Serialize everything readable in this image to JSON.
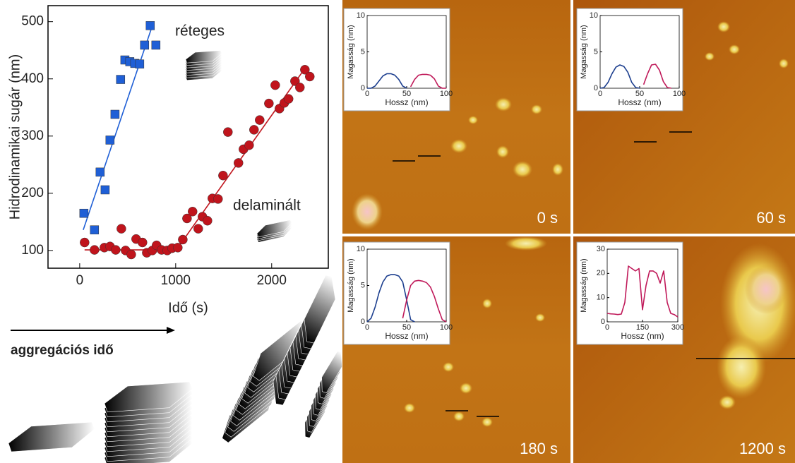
{
  "chart_data": [
    {
      "type": "scatter",
      "xlabel": "Idő (s)",
      "ylabel": "Hidrodinamikai sugár (nm)",
      "xlim": [
        -330,
        2590
      ],
      "ylim": [
        69,
        528
      ],
      "xticks": [
        0,
        1000,
        2000
      ],
      "yticks": [
        100,
        200,
        300,
        400,
        500
      ],
      "series": [
        {
          "name": "réteges",
          "color": "#1f5fd6",
          "marker": "square",
          "x": [
            44,
            154,
            213,
            265,
            316,
            368,
            426,
            471,
            522,
            574,
            625,
            676,
            735,
            794
          ],
          "values": [
            165,
            136,
            237,
            206,
            293,
            338,
            399,
            433,
            430,
            427,
            426,
            459,
            493,
            459
          ]
        },
        {
          "name": "delaminált",
          "color": "#c0141c",
          "marker": "circle",
          "x": [
            51,
            154,
            257,
            316,
            375,
            434,
            478,
            537,
            588,
            654,
            699,
            757,
            801,
            853,
            912,
            963,
            1022,
            1074,
            1118,
            1176,
            1235,
            1279,
            1331,
            1382,
            1441,
            1493,
            1544,
            1654,
            1706,
            1765,
            1816,
            1875,
            1971,
            2037,
            2081,
            2132,
            2176,
            2243,
            2294,
            2346,
            2397
          ],
          "values": [
            114,
            101,
            105,
            107,
            101,
            138,
            100,
            93,
            120,
            114,
            96,
            100,
            109,
            101,
            100,
            104,
            105,
            119,
            156,
            168,
            138,
            159,
            152,
            191,
            190,
            231,
            307,
            253,
            277,
            284,
            311,
            328,
            357,
            389,
            348,
            358,
            365,
            396,
            385,
            416,
            404
          ]
        }
      ],
      "fit_lines": [
        {
          "color": "#1f5fd6",
          "x": [
            37,
            757
          ],
          "values": [
            136,
            493
          ]
        },
        {
          "color": "#c0141c",
          "x": [
            51,
            1007,
            2353
          ],
          "values": [
            101,
            101,
            420
          ]
        }
      ]
    },
    {
      "type": "line",
      "xlabel": "Hossz (nm)",
      "ylabel": "Magasság (nm)",
      "xlim": [
        0,
        100
      ],
      "ylim": [
        0,
        10
      ],
      "xticks": [
        0,
        50,
        100
      ],
      "yticks": [
        0,
        5,
        10
      ],
      "x": [
        0,
        5,
        10,
        15,
        20,
        25,
        30,
        35,
        40,
        45,
        50,
        55,
        60,
        65,
        70,
        75,
        80,
        85,
        90,
        95,
        100
      ],
      "series": [
        {
          "color": "#1d3f8f",
          "values": [
            0,
            0,
            0.3,
            1.0,
            1.7,
            2.0,
            2.0,
            1.8,
            1.2,
            0.3,
            0,
            null,
            null,
            null,
            null,
            null,
            null,
            null,
            null,
            null,
            null
          ]
        },
        {
          "color": "#c01a5a",
          "values": [
            null,
            null,
            null,
            null,
            null,
            null,
            null,
            null,
            null,
            null,
            null,
            0.2,
            1.2,
            1.8,
            1.9,
            1.9,
            1.8,
            1.3,
            0.3,
            0,
            0
          ]
        }
      ]
    },
    {
      "type": "line",
      "xlabel": "Hossz (nm)",
      "ylabel": "Magasság (nm)",
      "xlim": [
        0,
        100
      ],
      "ylim": [
        0,
        10
      ],
      "xticks": [
        0,
        50,
        100
      ],
      "yticks": [
        0,
        5,
        10
      ],
      "x": [
        0,
        5,
        10,
        15,
        20,
        25,
        30,
        35,
        40,
        45,
        50,
        55,
        60,
        65,
        70,
        75,
        80,
        85,
        90,
        95,
        100
      ],
      "series": [
        {
          "color": "#1d3f8f",
          "values": [
            0,
            0.1,
            0.8,
            2.0,
            2.9,
            3.2,
            3.0,
            2.2,
            0.8,
            0.1,
            0,
            null,
            null,
            null,
            null,
            null,
            null,
            null,
            null,
            null,
            null
          ]
        },
        {
          "color": "#c01a5a",
          "values": [
            null,
            null,
            null,
            null,
            null,
            null,
            null,
            null,
            null,
            null,
            null,
            0.5,
            2.0,
            3.2,
            3.3,
            2.5,
            0.9,
            0.1,
            0,
            null,
            null
          ]
        }
      ]
    },
    {
      "type": "line",
      "xlabel": "Hossz (nm)",
      "ylabel": "Magasság (nm)",
      "xlim": [
        0,
        100
      ],
      "ylim": [
        0,
        10
      ],
      "xticks": [
        0,
        50,
        100
      ],
      "yticks": [
        0,
        5,
        10
      ],
      "x": [
        0,
        5,
        10,
        15,
        20,
        25,
        30,
        35,
        40,
        45,
        50,
        55,
        60,
        65,
        70,
        75,
        80,
        85,
        90,
        95,
        100
      ],
      "series": [
        {
          "color": "#1d3f8f",
          "values": [
            0,
            0.5,
            2.0,
            4.0,
            5.5,
            6.3,
            6.5,
            6.5,
            6.3,
            5.5,
            3.0,
            0.3,
            0,
            null,
            null,
            null,
            null,
            null,
            null,
            null,
            null
          ]
        },
        {
          "color": "#c01a5a",
          "values": [
            null,
            null,
            null,
            null,
            null,
            null,
            null,
            null,
            null,
            0.5,
            3.0,
            5.0,
            5.6,
            5.7,
            5.6,
            5.4,
            4.8,
            3.5,
            1.8,
            0.3,
            0
          ]
        }
      ]
    },
    {
      "type": "line",
      "xlabel": "Hossz (nm)",
      "ylabel": "Magasság (nm)",
      "xlim": [
        0,
        300
      ],
      "ylim": [
        0,
        30
      ],
      "xticks": [
        0,
        150,
        300
      ],
      "yticks": [
        0,
        10,
        20,
        30
      ],
      "x": [
        0,
        15,
        30,
        45,
        60,
        75,
        90,
        105,
        120,
        135,
        150,
        165,
        180,
        195,
        210,
        225,
        240,
        255,
        270,
        285,
        300
      ],
      "series": [
        {
          "color": "#c01a5a",
          "values": [
            3.5,
            3.3,
            3.2,
            3.0,
            3.2,
            8,
            23,
            22,
            21,
            22,
            5,
            15,
            21,
            21,
            20,
            16,
            21,
            8,
            3.5,
            3,
            2
          ]
        }
      ]
    }
  ],
  "arrow_label": "aggregációs idő",
  "afm_panels": [
    {
      "time": "0 s"
    },
    {
      "time": "60 s"
    },
    {
      "time": "180 s"
    },
    {
      "time": "1200 s"
    }
  ]
}
